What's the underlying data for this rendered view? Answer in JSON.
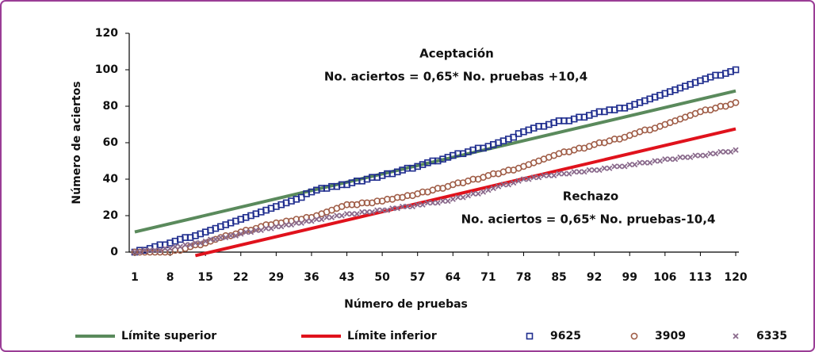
{
  "chart_data": {
    "type": "line",
    "y_label": "Número de aciertos",
    "x_label": "Número de pruebas",
    "annotations": [
      "Aceptación",
      "No. aciertos = 0,65* No. pruebas +10,4",
      "Rechazo",
      "No. aciertos = 0,65* No. pruebas-10,4"
    ],
    "xlim": [
      1,
      120
    ],
    "xticks": [
      1,
      8,
      15,
      22,
      29,
      36,
      43,
      50,
      57,
      64,
      71,
      78,
      85,
      92,
      99,
      106,
      113,
      120
    ],
    "ylim": [
      0,
      120
    ],
    "yticks": [
      0,
      20,
      40,
      60,
      80,
      100,
      120
    ],
    "x": [
      1,
      2,
      3,
      4,
      5,
      6,
      7,
      8,
      9,
      10,
      11,
      12,
      13,
      14,
      15,
      16,
      17,
      18,
      19,
      20,
      21,
      22,
      23,
      24,
      25,
      26,
      27,
      28,
      29,
      30,
      31,
      32,
      33,
      34,
      35,
      36,
      37,
      38,
      39,
      40,
      41,
      42,
      43,
      44,
      45,
      46,
      47,
      48,
      49,
      50,
      51,
      52,
      53,
      54,
      55,
      56,
      57,
      58,
      59,
      60,
      61,
      62,
      63,
      64,
      65,
      66,
      67,
      68,
      69,
      70,
      71,
      72,
      73,
      74,
      75,
      76,
      77,
      78,
      79,
      80,
      81,
      82,
      83,
      84,
      85,
      86,
      87,
      88,
      89,
      90,
      91,
      92,
      93,
      94,
      95,
      96,
      97,
      98,
      99,
      100,
      101,
      102,
      103,
      104,
      105,
      106,
      107,
      108,
      109,
      110,
      111,
      112,
      113,
      114,
      115,
      116,
      117,
      118,
      119,
      120
    ],
    "series": [
      {
        "name": "Límite superior",
        "color": "#5a8a5c",
        "style": "line",
        "x": [
          1,
          120
        ],
        "values": [
          11.05,
          88.4
        ]
      },
      {
        "name": "Límite inferior",
        "color": "#e0121c",
        "style": "line",
        "x": [
          13,
          120
        ],
        "values": [
          -1.95,
          67.6
        ]
      },
      {
        "name": "9625",
        "color": "#1f2d8e",
        "style": "square",
        "values": [
          0,
          1,
          1,
          2,
          3,
          4,
          4,
          5,
          6,
          7,
          8,
          8,
          9,
          10,
          11,
          12,
          13,
          14,
          15,
          16,
          17,
          18,
          19,
          20,
          21,
          22,
          23,
          24,
          25,
          26,
          27,
          28,
          29,
          30,
          32,
          33,
          34,
          35,
          35,
          36,
          36,
          37,
          37,
          38,
          39,
          39,
          40,
          41,
          41,
          42,
          43,
          43,
          44,
          45,
          46,
          46,
          47,
          48,
          49,
          50,
          50,
          51,
          52,
          53,
          54,
          54,
          55,
          56,
          57,
          57,
          58,
          59,
          60,
          61,
          62,
          63,
          65,
          66,
          67,
          68,
          69,
          69,
          70,
          71,
          72,
          72,
          72,
          73,
          74,
          74,
          75,
          76,
          77,
          77,
          78,
          78,
          79,
          79,
          80,
          81,
          82,
          83,
          84,
          85,
          86,
          87,
          88,
          89,
          90,
          91,
          92,
          93,
          94,
          95,
          96,
          97,
          97,
          98,
          99,
          100
        ]
      },
      {
        "name": "3909",
        "color": "#a05e48",
        "style": "circle",
        "values": [
          0,
          0,
          0,
          0,
          0,
          0,
          0,
          0,
          1,
          1,
          2,
          3,
          4,
          4,
          5,
          6,
          7,
          8,
          9,
          9,
          10,
          11,
          12,
          12,
          13,
          14,
          15,
          15,
          16,
          16,
          17,
          17,
          18,
          18,
          19,
          19,
          20,
          21,
          22,
          23,
          24,
          25,
          26,
          26,
          26,
          27,
          27,
          27,
          28,
          28,
          29,
          29,
          30,
          30,
          31,
          31,
          32,
          33,
          33,
          34,
          35,
          35,
          36,
          37,
          38,
          38,
          39,
          40,
          40,
          41,
          42,
          43,
          43,
          44,
          45,
          45,
          46,
          47,
          48,
          49,
          50,
          51,
          52,
          53,
          54,
          55,
          55,
          56,
          57,
          57,
          58,
          59,
          60,
          60,
          61,
          62,
          62,
          63,
          64,
          65,
          66,
          67,
          67,
          68,
          69,
          70,
          71,
          72,
          73,
          74,
          75,
          76,
          77,
          78,
          78,
          79,
          80,
          80,
          81,
          82
        ]
      },
      {
        "name": "6335",
        "color": "#8a6a8c",
        "style": "cross",
        "values": [
          0,
          0,
          1,
          1,
          1,
          1,
          2,
          2,
          3,
          3,
          4,
          4,
          5,
          5,
          6,
          7,
          7,
          8,
          8,
          9,
          9,
          10,
          11,
          11,
          12,
          12,
          13,
          13,
          14,
          14,
          15,
          15,
          16,
          16,
          17,
          17,
          18,
          18,
          19,
          19,
          20,
          20,
          21,
          21,
          21,
          22,
          22,
          22,
          23,
          23,
          23,
          24,
          24,
          25,
          25,
          25,
          26,
          26,
          27,
          27,
          27,
          28,
          28,
          29,
          30,
          30,
          31,
          32,
          32,
          33,
          34,
          35,
          36,
          37,
          37,
          38,
          39,
          40,
          40,
          41,
          41,
          42,
          42,
          42,
          43,
          43,
          43,
          44,
          44,
          44,
          45,
          45,
          45,
          46,
          46,
          47,
          47,
          47,
          48,
          48,
          49,
          49,
          49,
          50,
          50,
          51,
          51,
          51,
          52,
          52,
          52,
          53,
          53,
          53,
          54,
          54,
          55,
          55,
          55,
          56
        ]
      }
    ]
  }
}
